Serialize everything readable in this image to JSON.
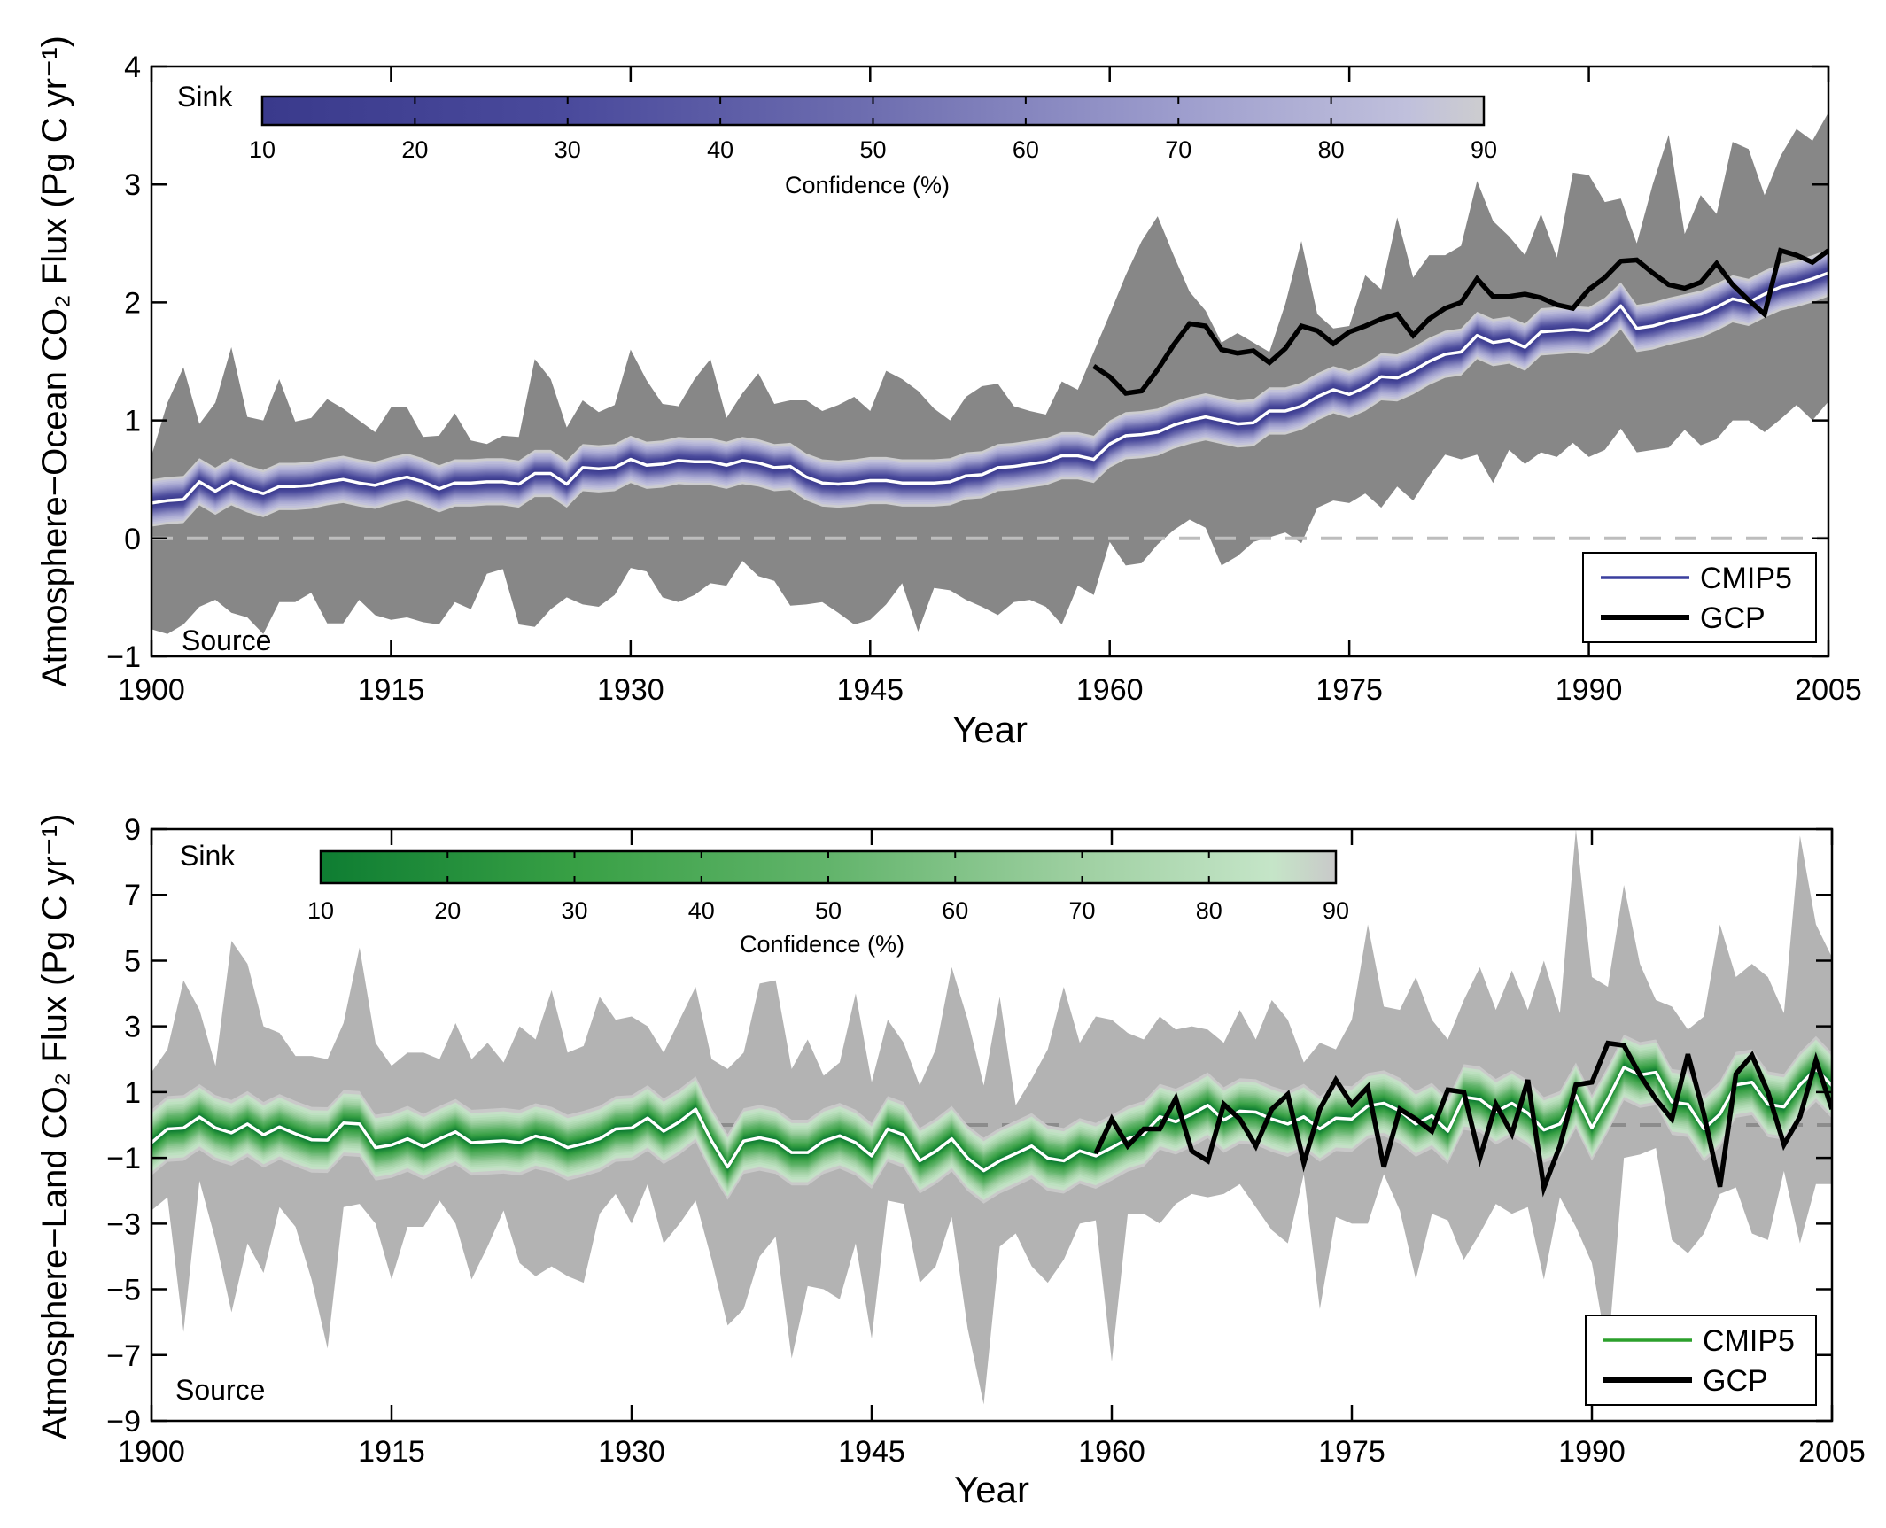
{
  "chart_data": [
    {
      "type": "area",
      "id": "ocean",
      "xlabel": "Year",
      "ylabel": "Atmosphere−Ocean CO₂ Flux (Pg C yr⁻¹)",
      "xlim": [
        1900,
        2005
      ],
      "ylim": [
        -1,
        4
      ],
      "xticks": [
        1900,
        1915,
        1930,
        1945,
        1960,
        1975,
        1990,
        2005
      ],
      "yticks": [
        -1,
        0,
        1,
        2,
        3,
        4
      ],
      "ytick_labels": [
        "−1",
        "0",
        "1",
        "2",
        "3",
        "4"
      ],
      "zero_line": true,
      "sink_label": "Sink",
      "source_label": "Source",
      "colorbar": {
        "label": "Confidence (%)",
        "ticks": [
          10,
          20,
          30,
          40,
          50,
          60,
          70,
          80,
          90
        ],
        "colors": [
          [
            "10",
            "#3a3a8c"
          ],
          [
            "30",
            "#4a4a9c"
          ],
          [
            "50",
            "#6e6eb0"
          ],
          [
            "70",
            "#9d9dcd"
          ],
          [
            "85",
            "#c0c0dc"
          ],
          [
            "90",
            "#cdcdcf"
          ]
        ]
      },
      "envelope_color": "#878787",
      "zero_line_color": "#bdbdbd",
      "legend": {
        "position": "bottom-right",
        "entries": [
          {
            "name": "CMIP5",
            "color": "#3a3f9e"
          },
          {
            "name": "GCP",
            "color": "#000000"
          }
        ]
      },
      "years_start": 1900,
      "cmip5_mean": [
        0.3,
        0.32,
        0.33,
        0.48,
        0.4,
        0.48,
        0.42,
        0.38,
        0.44,
        0.44,
        0.45,
        0.48,
        0.5,
        0.47,
        0.45,
        0.49,
        0.52,
        0.48,
        0.42,
        0.47,
        0.47,
        0.48,
        0.48,
        0.46,
        0.55,
        0.55,
        0.46,
        0.6,
        0.59,
        0.6,
        0.67,
        0.62,
        0.63,
        0.66,
        0.65,
        0.65,
        0.62,
        0.66,
        0.64,
        0.6,
        0.61,
        0.52,
        0.47,
        0.46,
        0.47,
        0.49,
        0.49,
        0.47,
        0.47,
        0.47,
        0.48,
        0.53,
        0.54,
        0.6,
        0.61,
        0.63,
        0.65,
        0.7,
        0.7,
        0.67,
        0.8,
        0.87,
        0.88,
        0.9,
        0.96,
        1.0,
        1.03,
        1.0,
        0.97,
        0.98,
        1.08,
        1.08,
        1.12,
        1.2,
        1.26,
        1.22,
        1.28,
        1.37,
        1.36,
        1.42,
        1.5,
        1.56,
        1.58,
        1.72,
        1.66,
        1.68,
        1.62,
        1.75,
        1.76,
        1.77,
        1.76,
        1.84,
        1.97,
        1.78,
        1.8,
        1.84,
        1.87,
        1.9,
        1.96,
        2.03,
        2.0,
        2.07,
        2.13,
        2.16,
        2.2,
        2.25
      ],
      "ci90_halfwidth": 0.2,
      "model_range_upper": [
        0.7,
        1.15,
        1.45,
        0.97,
        1.15,
        1.62,
        1.03,
        1.0,
        1.35,
        0.99,
        1.02,
        1.18,
        1.1,
        1.0,
        0.9,
        1.11,
        1.11,
        0.86,
        0.87,
        1.06,
        0.83,
        0.8,
        0.87,
        0.86,
        1.52,
        1.35,
        0.94,
        1.17,
        1.07,
        1.13,
        1.6,
        1.34,
        1.14,
        1.12,
        1.35,
        1.52,
        1.02,
        1.23,
        1.4,
        1.14,
        1.17,
        1.17,
        1.08,
        1.13,
        1.2,
        1.08,
        1.42,
        1.35,
        1.25,
        1.1,
        1.0,
        1.2,
        1.29,
        1.31,
        1.12,
        1.08,
        1.05,
        1.33,
        1.26,
        1.58,
        1.9,
        2.23,
        2.52,
        2.73,
        2.4,
        2.09,
        1.93,
        1.66,
        1.74,
        1.66,
        1.58,
        1.99,
        2.52,
        1.9,
        1.78,
        1.8,
        2.23,
        2.11,
        2.72,
        2.21,
        2.4,
        2.4,
        2.48,
        3.03,
        2.69,
        2.56,
        2.4,
        2.75,
        2.38,
        3.1,
        3.08,
        2.85,
        2.88,
        2.5,
        3.0,
        3.42,
        2.58,
        2.91,
        2.75,
        3.36,
        3.3,
        2.91,
        3.24,
        3.47,
        3.37,
        3.61
      ],
      "model_range_lower": [
        -0.77,
        -0.81,
        -0.73,
        -0.58,
        -0.52,
        -0.63,
        -0.67,
        -0.81,
        -0.54,
        -0.54,
        -0.46,
        -0.72,
        -0.72,
        -0.52,
        -0.65,
        -0.69,
        -0.67,
        -0.71,
        -0.73,
        -0.54,
        -0.6,
        -0.3,
        -0.26,
        -0.73,
        -0.75,
        -0.6,
        -0.5,
        -0.56,
        -0.58,
        -0.48,
        -0.25,
        -0.28,
        -0.5,
        -0.54,
        -0.48,
        -0.38,
        -0.4,
        -0.19,
        -0.32,
        -0.36,
        -0.57,
        -0.56,
        -0.54,
        -0.63,
        -0.73,
        -0.69,
        -0.56,
        -0.38,
        -0.79,
        -0.42,
        -0.44,
        -0.52,
        -0.58,
        -0.65,
        -0.54,
        -0.52,
        -0.58,
        -0.73,
        -0.4,
        -0.48,
        -0.03,
        -0.23,
        -0.21,
        -0.05,
        0.07,
        0.16,
        0.09,
        -0.23,
        -0.15,
        -0.03,
        0.01,
        0.05,
        -0.04,
        0.26,
        0.32,
        0.3,
        0.38,
        0.26,
        0.44,
        0.32,
        0.53,
        0.71,
        0.67,
        0.71,
        0.47,
        0.75,
        0.63,
        0.73,
        0.69,
        0.81,
        0.69,
        0.75,
        0.93,
        0.73,
        0.75,
        0.77,
        0.92,
        0.79,
        0.84,
        1.0,
        1.0,
        0.9,
        1.01,
        1.13,
        1.0,
        1.16
      ],
      "gcp_start": 1959,
      "gcp": [
        1.46,
        1.37,
        1.23,
        1.25,
        1.43,
        1.64,
        1.82,
        1.8,
        1.6,
        1.57,
        1.59,
        1.49,
        1.61,
        1.8,
        1.76,
        1.65,
        1.75,
        1.8,
        1.86,
        1.9,
        1.72,
        1.86,
        1.95,
        2.0,
        2.2,
        2.05,
        2.05,
        2.07,
        2.04,
        1.98,
        1.95,
        2.11,
        2.21,
        2.35,
        2.36,
        2.25,
        2.15,
        2.12,
        2.17,
        2.33,
        2.15,
        2.02,
        1.9,
        2.44,
        2.4,
        2.34,
        2.44
      ]
    },
    {
      "type": "area",
      "id": "land",
      "xlabel": "Year",
      "ylabel": "Atmosphere−Land CO₂ Flux (Pg C yr⁻¹)",
      "xlim": [
        1900,
        2005
      ],
      "ylim": [
        -9,
        9
      ],
      "xticks": [
        1900,
        1915,
        1930,
        1945,
        1960,
        1975,
        1990,
        2005
      ],
      "yticks": [
        -9,
        -7,
        -5,
        -3,
        -1,
        1,
        3,
        5,
        7,
        9
      ],
      "ytick_labels": [
        "−9",
        "−7",
        "−5",
        "−3",
        "−1",
        "1",
        "3",
        "5",
        "7",
        "9"
      ],
      "zero_line": true,
      "sink_label": "Sink",
      "source_label": "Source",
      "colorbar": {
        "label": "Confidence (%)",
        "ticks": [
          10,
          20,
          30,
          40,
          50,
          60,
          70,
          80,
          90
        ],
        "colors": [
          [
            "10",
            "#0e7d32"
          ],
          [
            "30",
            "#38a045"
          ],
          [
            "50",
            "#62b46b"
          ],
          [
            "70",
            "#9fd0a2"
          ],
          [
            "85",
            "#c5e5c8"
          ],
          [
            "90",
            "#c9c9c9"
          ]
        ]
      },
      "envelope_color": "#b3b3b3",
      "zero_line_color": "#8c8c8c",
      "legend": {
        "position": "bottom-right",
        "entries": [
          {
            "name": "CMIP5",
            "color": "#2ca02c"
          },
          {
            "name": "GCP",
            "color": "#000000"
          }
        ]
      },
      "years_start": 1900,
      "cmip5_mean": [
        -0.54,
        -0.12,
        -0.09,
        0.24,
        -0.09,
        -0.24,
        0.03,
        -0.3,
        -0.06,
        -0.27,
        -0.45,
        -0.46,
        0.06,
        0.03,
        -0.69,
        -0.61,
        -0.42,
        -0.66,
        -0.42,
        -0.21,
        -0.54,
        -0.51,
        -0.48,
        -0.54,
        -0.34,
        -0.45,
        -0.69,
        -0.57,
        -0.42,
        -0.12,
        -0.09,
        0.21,
        -0.19,
        0.1,
        0.48,
        -0.49,
        -1.28,
        -0.49,
        -0.39,
        -0.49,
        -0.84,
        -0.84,
        -0.49,
        -0.33,
        -0.54,
        -0.94,
        -0.12,
        -0.3,
        -1.09,
        -0.8,
        -0.42,
        -1.01,
        -1.39,
        -1.09,
        -0.87,
        -0.64,
        -1.01,
        -1.09,
        -0.79,
        -0.94,
        -0.69,
        -0.42,
        -0.27,
        0.25,
        0.1,
        0.33,
        0.6,
        0.15,
        0.42,
        0.39,
        0.18,
        0.03,
        0.25,
        -0.12,
        0.21,
        0.18,
        0.58,
        0.66,
        0.43,
        0.03,
        0.28,
        -0.19,
        0.85,
        0.78,
        0.4,
        0.66,
        0.36,
        -0.15,
        0.03,
        0.9,
        -0.09,
        0.78,
        1.75,
        1.52,
        1.6,
        0.7,
        0.63,
        -0.12,
        0.33,
        1.22,
        1.3,
        0.63,
        0.55,
        1.22,
        1.7,
        1.2
      ],
      "ci90_halfwidth": 1.0,
      "model_range_upper": [
        1.6,
        2.3,
        4.4,
        3.5,
        1.8,
        5.6,
        4.9,
        3.0,
        2.8,
        2.1,
        2.1,
        2.0,
        3.1,
        5.4,
        2.5,
        1.8,
        2.2,
        2.2,
        2.0,
        3.1,
        2.0,
        2.5,
        1.9,
        3.0,
        2.6,
        4.1,
        2.2,
        2.4,
        3.9,
        3.2,
        3.3,
        3.0,
        2.2,
        3.2,
        4.2,
        2.0,
        1.7,
        2.2,
        4.3,
        4.4,
        1.7,
        2.6,
        1.5,
        1.9,
        4.0,
        1.3,
        3.2,
        2.5,
        1.2,
        2.3,
        4.8,
        3.2,
        1.2,
        3.9,
        0.6,
        1.4,
        2.3,
        4.2,
        2.5,
        3.3,
        3.2,
        2.8,
        2.6,
        3.3,
        2.9,
        3.0,
        2.9,
        2.5,
        3.5,
        2.6,
        3.8,
        3.2,
        1.9,
        2.5,
        2.3,
        3.2,
        6.1,
        3.6,
        3.5,
        4.5,
        3.2,
        2.6,
        3.8,
        4.8,
        3.5,
        4.7,
        3.5,
        5.0,
        3.4,
        9.0,
        4.5,
        4.2,
        7.3,
        4.9,
        3.8,
        3.6,
        2.9,
        3.3,
        6.1,
        4.5,
        4.9,
        4.5,
        3.4,
        8.8,
        6.1,
        5.1
      ],
      "model_range_lower": [
        -2.6,
        -2.2,
        -6.3,
        -1.7,
        -3.5,
        -5.7,
        -3.6,
        -4.5,
        -2.5,
        -3.1,
        -4.7,
        -6.8,
        -2.5,
        -2.4,
        -3.0,
        -4.7,
        -3.1,
        -3.1,
        -2.3,
        -3.0,
        -4.7,
        -3.7,
        -2.6,
        -4.2,
        -4.6,
        -4.3,
        -4.6,
        -4.8,
        -2.7,
        -2.1,
        -3.0,
        -1.8,
        -3.6,
        -3.0,
        -2.3,
        -4.1,
        -6.1,
        -5.6,
        -4.0,
        -3.4,
        -7.1,
        -4.9,
        -5.0,
        -5.3,
        -3.6,
        -6.5,
        -2.3,
        -2.4,
        -4.8,
        -4.3,
        -2.8,
        -6.2,
        -8.5,
        -3.7,
        -3.3,
        -4.3,
        -4.8,
        -4.1,
        -3.0,
        -2.9,
        -7.2,
        -2.7,
        -2.7,
        -3.0,
        -2.4,
        -2.1,
        -2.2,
        -2.1,
        -1.8,
        -2.5,
        -3.2,
        -3.6,
        -1.5,
        -5.6,
        -2.8,
        -3.0,
        -3.0,
        -1.5,
        -2.6,
        -4.7,
        -2.7,
        -2.9,
        -4.1,
        -3.3,
        -2.4,
        -2.7,
        -2.5,
        -4.7,
        -2.2,
        -3.1,
        -4.2,
        -7.0,
        -1.0,
        -0.9,
        -0.7,
        -3.5,
        -3.9,
        -3.3,
        -2.1,
        -1.9,
        -3.3,
        -3.5,
        -1.4,
        -3.6,
        -1.8,
        -1.8
      ],
      "gcp_start": 1959,
      "gcp": [
        -0.87,
        0.18,
        -0.64,
        -0.12,
        -0.12,
        0.81,
        -0.79,
        -1.09,
        0.63,
        0.18,
        -0.64,
        0.48,
        0.93,
        -1.16,
        0.48,
        1.37,
        0.63,
        1.15,
        -1.28,
        0.48,
        0.18,
        -0.19,
        1.07,
        1.0,
        -1.01,
        0.63,
        -0.27,
        1.37,
        -1.91,
        -0.64,
        1.22,
        1.3,
        2.49,
        2.42,
        1.52,
        0.78,
        0.18,
        2.15,
        0.33,
        -1.88,
        1.55,
        2.12,
        1.0,
        -0.6,
        0.25,
        1.97,
        0.48
      ]
    }
  ]
}
